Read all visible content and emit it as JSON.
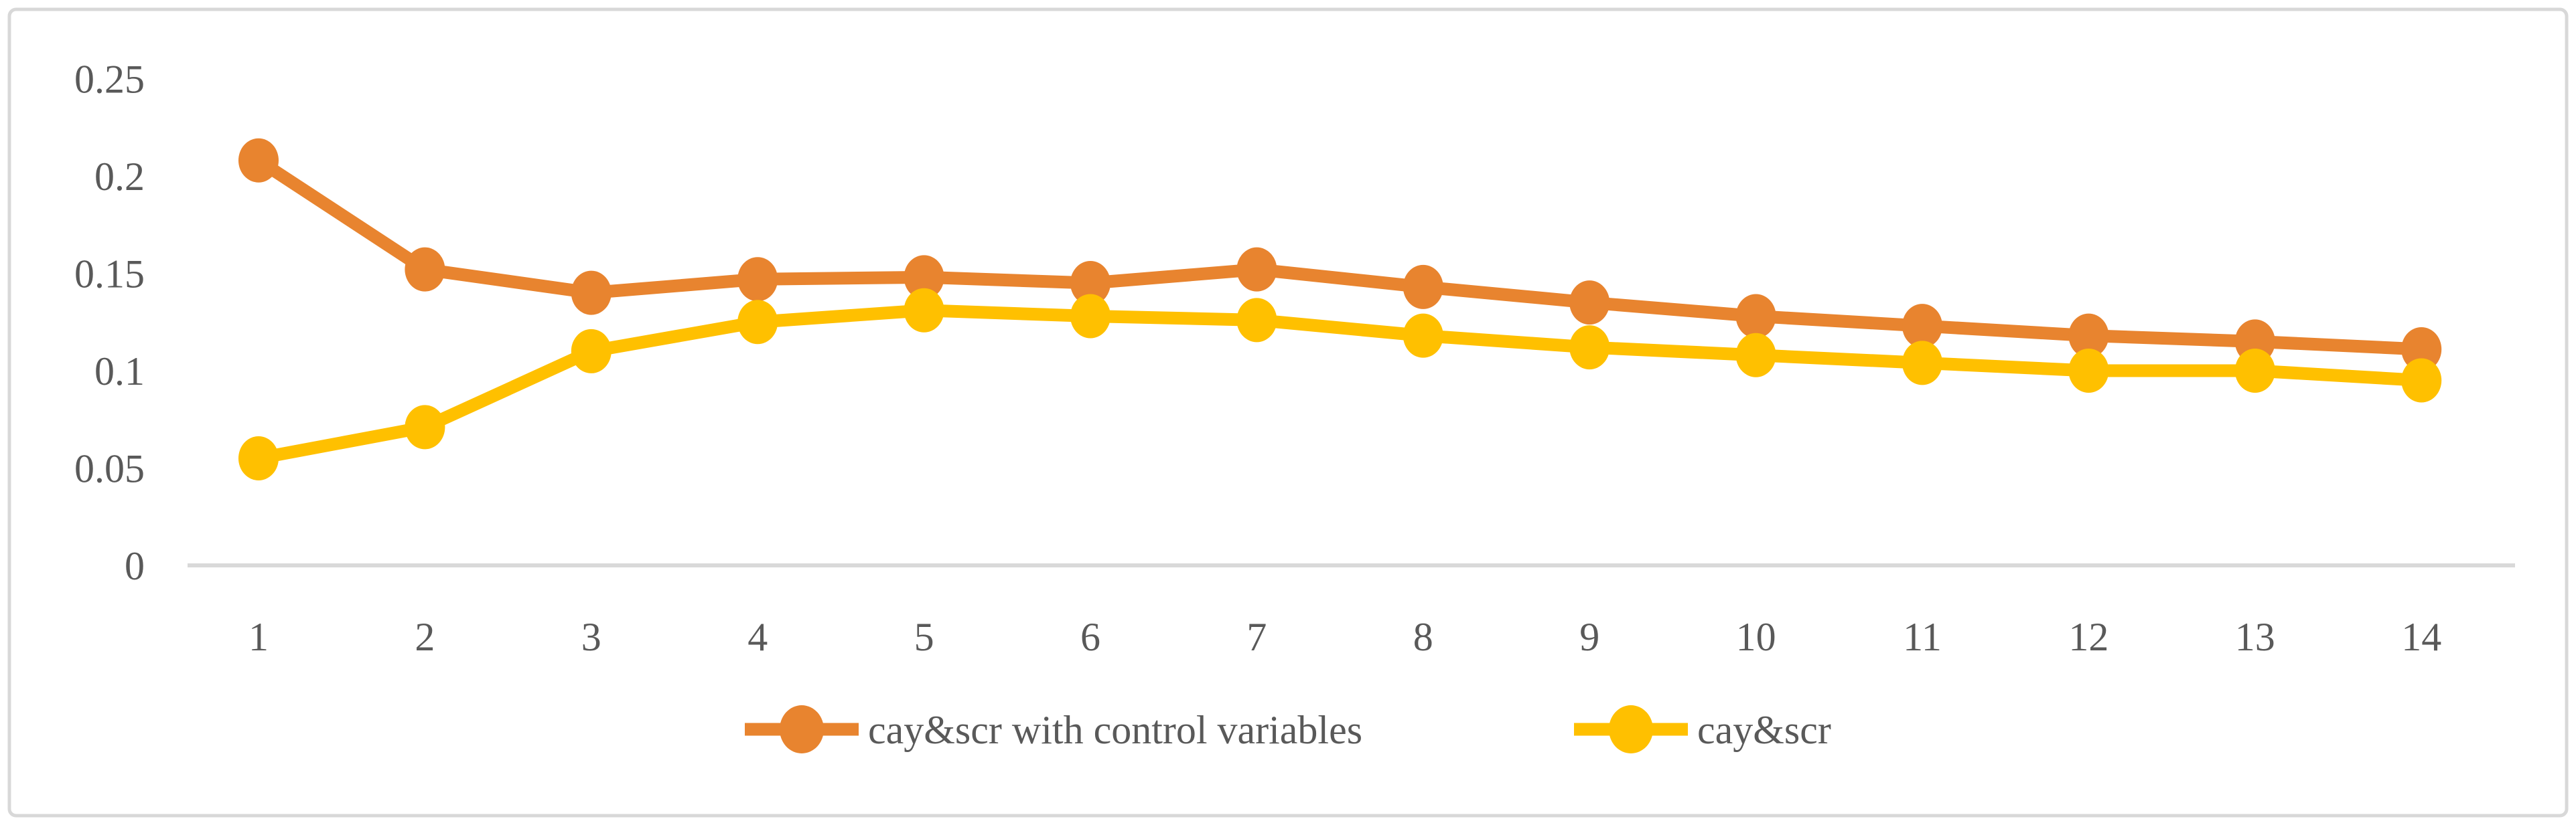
{
  "figure": {
    "background_color": "#ffffff",
    "border_color": "#d8d8d8",
    "axis_line_color": "#d9d9d9",
    "text_color": "#595959"
  },
  "chart_data": {
    "type": "line",
    "title": "",
    "xlabel": "",
    "ylabel": "",
    "categories": [
      1,
      2,
      3,
      4,
      5,
      6,
      7,
      8,
      9,
      10,
      11,
      12,
      13,
      14
    ],
    "series": [
      {
        "name": "cay&scr with control variables",
        "color": "#e8842f",
        "values": [
          0.208,
          0.152,
          0.14,
          0.147,
          0.148,
          0.145,
          0.152,
          0.143,
          0.135,
          0.128,
          0.123,
          0.118,
          0.115,
          0.111
        ]
      },
      {
        "name": "cay&scr",
        "color": "#ffc000",
        "values": [
          0.055,
          0.071,
          0.11,
          0.125,
          0.131,
          0.128,
          0.126,
          0.118,
          0.112,
          0.108,
          0.104,
          0.1,
          0.1,
          0.095
        ]
      }
    ],
    "ylim": [
      0,
      0.25
    ],
    "y_ticks": [
      0,
      0.05,
      0.1,
      0.15,
      0.2,
      0.25
    ],
    "y_tick_labels": [
      "0",
      "0.05",
      "0.1",
      "0.15",
      "0.2",
      "0.25"
    ],
    "grid": false,
    "legend_position": "bottom-center",
    "marker": "circle",
    "line_style": "solid"
  }
}
